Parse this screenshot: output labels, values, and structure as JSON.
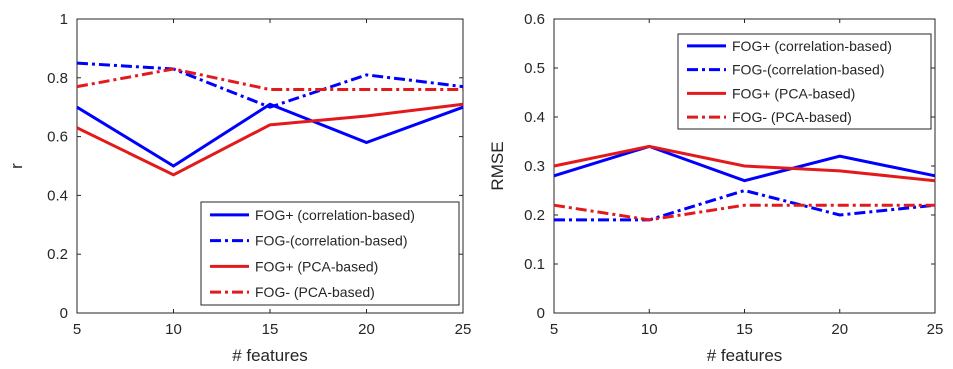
{
  "chart_data": [
    {
      "type": "line",
      "title": "",
      "xlabel": "# features",
      "ylabel": "r",
      "x": [
        5,
        10,
        15,
        20,
        25
      ],
      "xlim": [
        5,
        25
      ],
      "ylim": [
        0,
        1
      ],
      "xticks": [
        "5",
        "10",
        "15",
        "20",
        "25"
      ],
      "yticks": [
        "0",
        "0.2",
        "0.4",
        "0.6",
        "0.8",
        "1"
      ],
      "grid": false,
      "legend_position": "bottom-right",
      "series": [
        {
          "name": "FOG+ (correlation-based)",
          "color": "#0000ff",
          "style": "solid",
          "values": [
            0.7,
            0.5,
            0.71,
            0.58,
            0.7
          ]
        },
        {
          "name": "FOG-(correlation-based)",
          "color": "#0000ff",
          "style": "dashdot",
          "values": [
            0.85,
            0.83,
            0.7,
            0.81,
            0.77
          ]
        },
        {
          "name": "FOG+ (PCA-based)",
          "color": "#e31a1c",
          "style": "solid",
          "values": [
            0.63,
            0.47,
            0.64,
            0.67,
            0.71
          ]
        },
        {
          "name": "FOG- (PCA-based)",
          "color": "#e31a1c",
          "style": "dashdot",
          "values": [
            0.77,
            0.83,
            0.76,
            0.76,
            0.76
          ]
        }
      ]
    },
    {
      "type": "line",
      "title": "",
      "xlabel": "# features",
      "ylabel": "RMSE",
      "x": [
        5,
        10,
        15,
        20,
        25
      ],
      "xlim": [
        5,
        25
      ],
      "ylim": [
        0,
        0.6
      ],
      "xticks": [
        "5",
        "10",
        "15",
        "20",
        "25"
      ],
      "yticks": [
        "0",
        "0.1",
        "0.2",
        "0.3",
        "0.4",
        "0.5",
        "0.6"
      ],
      "grid": false,
      "legend_position": "top-right",
      "series": [
        {
          "name": "FOG+ (correlation-based)",
          "color": "#0000ff",
          "style": "solid",
          "values": [
            0.28,
            0.34,
            0.27,
            0.32,
            0.28
          ]
        },
        {
          "name": "FOG-(correlation-based)",
          "color": "#0000ff",
          "style": "dashdot",
          "values": [
            0.19,
            0.19,
            0.25,
            0.2,
            0.22
          ]
        },
        {
          "name": "FOG+ (PCA-based)",
          "color": "#e31a1c",
          "style": "solid",
          "values": [
            0.3,
            0.34,
            0.3,
            0.29,
            0.27
          ]
        },
        {
          "name": "FOG- (PCA-based)",
          "color": "#e31a1c",
          "style": "dashdot",
          "values": [
            0.22,
            0.19,
            0.22,
            0.22,
            0.22
          ]
        }
      ]
    }
  ]
}
